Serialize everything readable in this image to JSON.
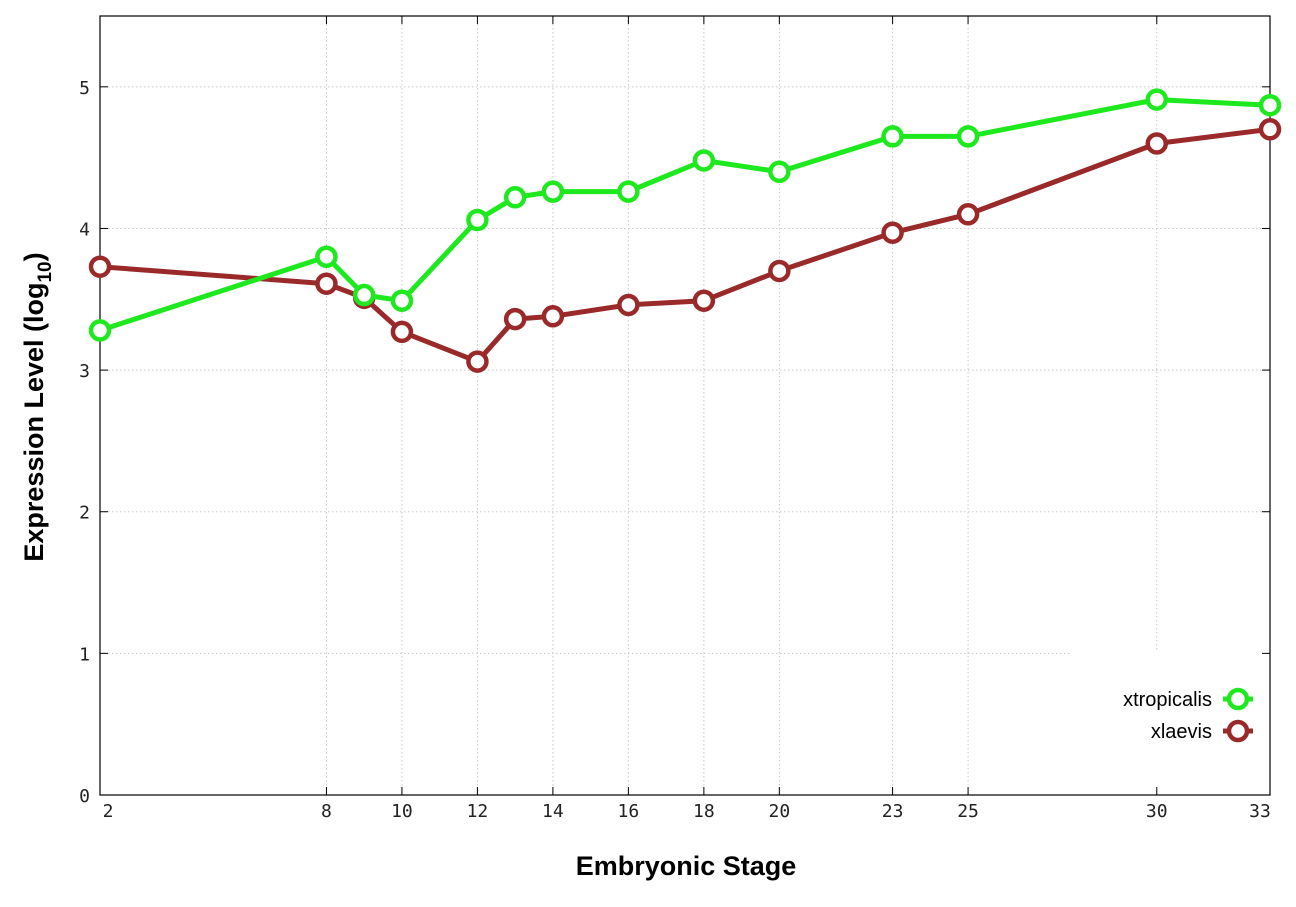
{
  "chart_data": {
    "type": "line",
    "xlabel": "Embryonic Stage",
    "ylabel_main": "Expression Level (log",
    "ylabel_sub": "10",
    "ylabel_close": ")",
    "x_ticks": [
      2,
      8,
      10,
      12,
      14,
      16,
      18,
      20,
      23,
      25,
      30,
      33
    ],
    "y_ticks": [
      0,
      1,
      2,
      3,
      4,
      5
    ],
    "xlim": [
      2,
      33
    ],
    "ylim": [
      0,
      5.5
    ],
    "grid": true,
    "legend_position": "bottom-right",
    "series": [
      {
        "name": "xtropicalis",
        "color": "#1ee81e",
        "x": [
          2,
          8,
          9,
          10,
          12,
          13,
          14,
          16,
          18,
          20,
          23,
          25,
          30,
          33
        ],
        "y": [
          3.28,
          3.8,
          3.53,
          3.49,
          4.06,
          4.22,
          4.26,
          4.26,
          4.48,
          4.4,
          4.65,
          4.65,
          4.91,
          4.87
        ]
      },
      {
        "name": "xlaevis",
        "color": "#9a2a2a",
        "x": [
          2,
          8,
          9,
          10,
          12,
          13,
          14,
          16,
          18,
          20,
          23,
          25,
          30,
          33
        ],
        "y": [
          3.73,
          3.61,
          3.51,
          3.27,
          3.06,
          3.36,
          3.38,
          3.46,
          3.49,
          3.7,
          3.97,
          4.1,
          4.6,
          4.7
        ]
      }
    ]
  }
}
